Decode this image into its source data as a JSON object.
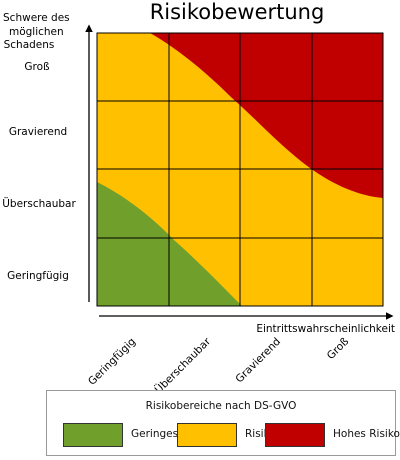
{
  "title": "Risikobewertung",
  "y_axis_title_lines": [
    "Schwere des",
    "möglichen",
    "Schadens"
  ],
  "x_axis_title": "Eintrittswahrscheinlichkeit",
  "y_levels": [
    "Groß",
    "Gravierend",
    "Überschaubar",
    "Geringfügig"
  ],
  "x_levels": [
    "Geringfügig",
    "Überschaubar",
    "Gravierend",
    "Groß"
  ],
  "legend": {
    "title": "Risikobereiche nach DS-GVO",
    "items": [
      {
        "label": "Geringes Risiko",
        "color": "#70a02b"
      },
      {
        "label": "Risiko",
        "color": "#ffc000"
      },
      {
        "label": "Hohes Risiko",
        "color": "#c00000"
      }
    ]
  },
  "chart_data": {
    "type": "heatmap",
    "title": "Risikobewertung",
    "xlabel": "Eintrittswahrscheinlichkeit",
    "ylabel": "Schwere des möglichen Schadens",
    "x_categories": [
      "Geringfügig",
      "Überschaubar",
      "Gravierend",
      "Groß"
    ],
    "y_categories": [
      "Geringfügig",
      "Überschaubar",
      "Gravierend",
      "Groß"
    ],
    "zones": [
      {
        "name": "Geringes Risiko",
        "color": "#70a02b",
        "position": "bottom-left"
      },
      {
        "name": "Risiko",
        "color": "#ffc000",
        "position": "middle diagonal band"
      },
      {
        "name": "Hohes Risiko",
        "color": "#c00000",
        "position": "top-right"
      }
    ]
  }
}
